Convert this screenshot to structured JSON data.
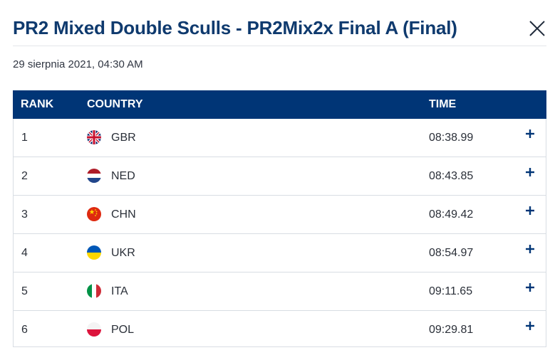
{
  "header": {
    "title": "PR2 Mixed Double Sculls - PR2Mix2x Final A (Final)",
    "date": "29 sierpnia 2021, 04:30 AM"
  },
  "table": {
    "columns": {
      "rank": "RANK",
      "country": "COUNTRY",
      "time": "TIME"
    },
    "rows": [
      {
        "rank": "1",
        "country": "GBR",
        "time": "08:38.99",
        "flag": "gbr-flag-icon"
      },
      {
        "rank": "2",
        "country": "NED",
        "time": "08:43.85",
        "flag": "ned-flag-icon"
      },
      {
        "rank": "3",
        "country": "CHN",
        "time": "08:49.42",
        "flag": "chn-flag-icon"
      },
      {
        "rank": "4",
        "country": "UKR",
        "time": "08:54.97",
        "flag": "ukr-flag-icon"
      },
      {
        "rank": "5",
        "country": "ITA",
        "time": "09:11.65",
        "flag": "ita-flag-icon"
      },
      {
        "rank": "6",
        "country": "POL",
        "time": "09:29.81",
        "flag": "pol-flag-icon"
      }
    ]
  },
  "colors": {
    "title": "#0f3a6e",
    "header_bg": "#003576",
    "divider": "#d8dde3"
  }
}
